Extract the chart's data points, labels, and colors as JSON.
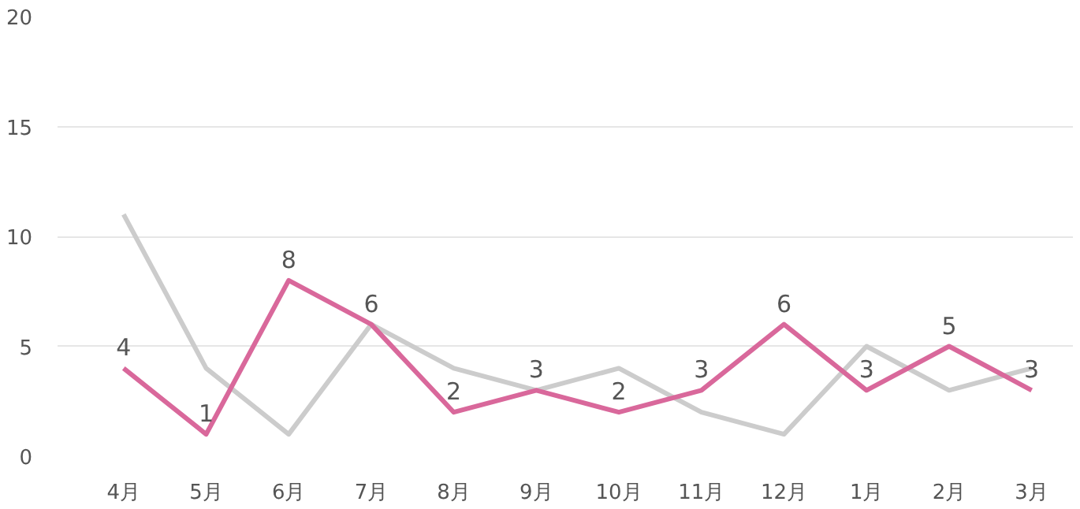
{
  "chart_data": {
    "type": "line",
    "categories": [
      "4月",
      "5月",
      "6月",
      "7月",
      "8月",
      "9月",
      "10月",
      "11月",
      "12月",
      "1月",
      "2月",
      "3月"
    ],
    "series": [
      {
        "color": "#cccccc",
        "values": [
          11,
          4,
          1,
          6,
          4,
          3,
          4,
          2,
          1,
          5,
          3,
          4
        ]
      },
      {
        "color": "#d9689b",
        "values": [
          4,
          1,
          8,
          6,
          2,
          3,
          2,
          3,
          6,
          3,
          5,
          3
        ],
        "value_labels": [
          "4",
          "1",
          "8",
          "6",
          "2",
          "3",
          "2",
          "3",
          "6",
          "3",
          "5",
          "3"
        ]
      }
    ],
    "ylim": [
      0,
      20
    ],
    "yticks": [
      0,
      5,
      10,
      15,
      20
    ],
    "grid": "y",
    "marker": "none",
    "line_style": "solid"
  }
}
